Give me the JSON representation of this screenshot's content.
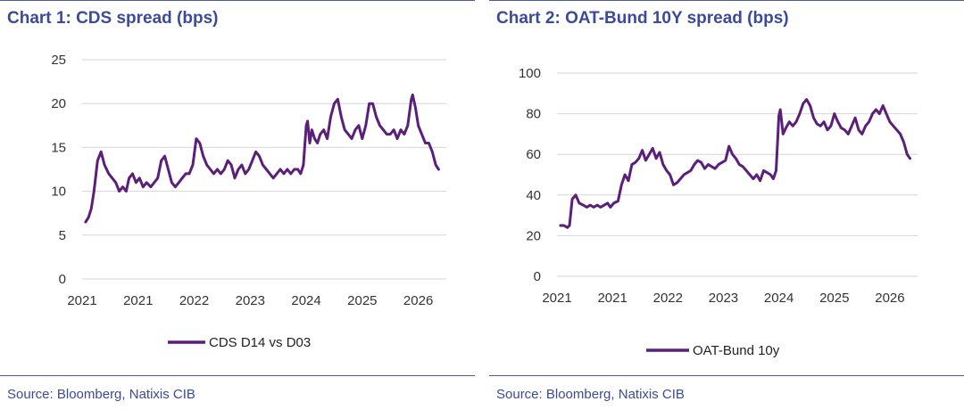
{
  "panels": [
    {
      "title": "Chart 1: CDS spread (bps)",
      "source": "Source: Bloomberg, Natixis CIB"
    },
    {
      "title": "Chart 2: OAT-Bund 10Y spread (bps)",
      "source": "Source: Bloomberg, Natixis CIB"
    }
  ],
  "chart_data": [
    {
      "type": "line",
      "title": "Chart 1: CDS spread (bps)",
      "xlabel": "",
      "ylabel": "",
      "ylim": [
        0,
        25
      ],
      "yticks": [
        0,
        5,
        10,
        15,
        20,
        25
      ],
      "xlim": [
        2021.0,
        2026.2
      ],
      "xtick_positions": [
        2021.0,
        2021.8,
        2022.6,
        2023.4,
        2024.2,
        2025.0,
        2025.8
      ],
      "xtick_labels": [
        "2021",
        "2021",
        "2022",
        "2023",
        "2024",
        "2025",
        "2026"
      ],
      "grid": "horizontal",
      "legend": "bottom",
      "color": "#5b1f7a",
      "series": [
        {
          "name": "CDS D14 vs D03",
          "x": [
            2021.05,
            2021.09,
            2021.13,
            2021.17,
            2021.22,
            2021.27,
            2021.32,
            2021.38,
            2021.43,
            2021.48,
            2021.53,
            2021.58,
            2021.63,
            2021.67,
            2021.72,
            2021.77,
            2021.82,
            2021.87,
            2021.92,
            2021.98,
            2022.03,
            2022.08,
            2022.13,
            2022.18,
            2022.23,
            2022.28,
            2022.33,
            2022.38,
            2022.43,
            2022.48,
            2022.53,
            2022.58,
            2022.63,
            2022.68,
            2022.73,
            2022.78,
            2022.83,
            2022.88,
            2022.93,
            2022.98,
            2023.03,
            2023.08,
            2023.13,
            2023.18,
            2023.23,
            2023.28,
            2023.33,
            2023.38,
            2023.43,
            2023.48,
            2023.53,
            2023.58,
            2023.63,
            2023.68,
            2023.73,
            2023.78,
            2023.83,
            2023.88,
            2023.93,
            2023.98,
            2024.03,
            2024.08,
            2024.12,
            2024.16,
            2024.2,
            2024.22,
            2024.25,
            2024.28,
            2024.32,
            2024.36,
            2024.4,
            2024.45,
            2024.5,
            2024.55,
            2024.6,
            2024.65,
            2024.7,
            2024.75,
            2024.8,
            2024.85,
            2024.9,
            2024.95,
            2025.0,
            2025.05,
            2025.1,
            2025.15,
            2025.2,
            2025.25,
            2025.3,
            2025.35,
            2025.4,
            2025.45,
            2025.5,
            2025.55,
            2025.6,
            2025.65,
            2025.7,
            2025.72,
            2025.76,
            2025.8,
            2025.85,
            2025.9,
            2025.95,
            2026.0,
            2026.05,
            2026.09
          ],
          "y": [
            6.5,
            7.0,
            8.0,
            10.0,
            13.5,
            14.5,
            13.0,
            12.0,
            11.5,
            11.0,
            10.0,
            10.5,
            10.0,
            11.5,
            12.0,
            11.0,
            11.5,
            10.5,
            11.0,
            10.5,
            11.0,
            11.5,
            13.5,
            14.0,
            12.5,
            11.0,
            10.5,
            11.0,
            11.5,
            12.0,
            12.0,
            13.0,
            16.0,
            15.5,
            14.0,
            13.0,
            12.5,
            12.0,
            12.5,
            12.0,
            12.5,
            13.5,
            13.0,
            11.5,
            12.5,
            13.0,
            12.0,
            12.5,
            13.5,
            14.5,
            14.0,
            13.0,
            12.5,
            12.0,
            11.5,
            12.0,
            12.5,
            12.0,
            12.5,
            12.0,
            12.5,
            12.5,
            12.0,
            13.0,
            17.5,
            18.0,
            15.5,
            17.0,
            16.0,
            15.5,
            16.5,
            17.0,
            16.0,
            18.5,
            20.0,
            20.5,
            18.5,
            17.0,
            16.5,
            16.0,
            17.0,
            17.5,
            16.0,
            17.5,
            20.0,
            20.0,
            18.5,
            17.5,
            17.0,
            16.5,
            16.5,
            17.0,
            16.0,
            17.0,
            16.5,
            17.5,
            20.5,
            21.0,
            19.5,
            17.5,
            16.5,
            15.5,
            15.5,
            14.5,
            13.0,
            12.5
          ]
        }
      ]
    },
    {
      "type": "line",
      "title": "Chart 2: OAT-Bund 10Y spread (bps)",
      "xlabel": "",
      "ylabel": "",
      "ylim": [
        0,
        100
      ],
      "yticks": [
        0,
        20,
        40,
        60,
        80,
        100
      ],
      "xlim": [
        2021.0,
        2026.2
      ],
      "xtick_positions": [
        2021.0,
        2021.8,
        2022.6,
        2023.4,
        2024.2,
        2025.0,
        2025.8
      ],
      "xtick_labels": [
        "2021",
        "2021",
        "2022",
        "2023",
        "2024",
        "2025",
        "2026"
      ],
      "grid": "horizontal",
      "legend": "bottom",
      "color": "#5b1f7a",
      "series": [
        {
          "name": "OAT-Bund 10y",
          "x": [
            2021.05,
            2021.1,
            2021.15,
            2021.18,
            2021.22,
            2021.27,
            2021.32,
            2021.38,
            2021.43,
            2021.48,
            2021.53,
            2021.58,
            2021.63,
            2021.68,
            2021.73,
            2021.77,
            2021.82,
            2021.88,
            2021.93,
            2021.98,
            2022.03,
            2022.08,
            2022.13,
            2022.18,
            2022.23,
            2022.28,
            2022.33,
            2022.38,
            2022.43,
            2022.48,
            2022.53,
            2022.58,
            2022.63,
            2022.68,
            2022.73,
            2022.78,
            2022.83,
            2022.88,
            2022.93,
            2022.98,
            2023.03,
            2023.08,
            2023.13,
            2023.18,
            2023.23,
            2023.28,
            2023.33,
            2023.38,
            2023.43,
            2023.48,
            2023.53,
            2023.58,
            2023.63,
            2023.68,
            2023.73,
            2023.78,
            2023.83,
            2023.88,
            2023.93,
            2023.98,
            2024.03,
            2024.08,
            2024.12,
            2024.16,
            2024.2,
            2024.22,
            2024.26,
            2024.3,
            2024.35,
            2024.4,
            2024.45,
            2024.5,
            2024.55,
            2024.6,
            2024.65,
            2024.7,
            2024.75,
            2024.8,
            2024.85,
            2024.9,
            2024.95,
            2025.0,
            2025.05,
            2025.1,
            2025.15,
            2025.2,
            2025.25,
            2025.3,
            2025.35,
            2025.4,
            2025.45,
            2025.5,
            2025.55,
            2025.6,
            2025.65,
            2025.7,
            2025.75,
            2025.8,
            2025.85,
            2025.9,
            2025.95,
            2026.0,
            2026.05,
            2026.09
          ],
          "y": [
            25,
            25,
            24,
            25,
            38,
            40,
            36,
            35,
            34,
            35,
            34,
            35,
            34,
            35,
            36,
            34,
            36,
            37,
            45,
            50,
            47,
            55,
            56,
            58,
            62,
            57,
            60,
            63,
            58,
            61,
            55,
            52,
            50,
            45,
            46,
            48,
            50,
            51,
            52,
            55,
            57,
            56,
            53,
            55,
            54,
            53,
            55,
            56,
            57,
            64,
            60,
            58,
            55,
            54,
            52,
            50,
            48,
            50,
            47,
            52,
            51,
            50,
            48,
            52,
            79,
            82,
            70,
            73,
            76,
            74,
            76,
            80,
            85,
            87,
            84,
            78,
            75,
            74,
            76,
            72,
            74,
            80,
            76,
            73,
            72,
            70,
            74,
            78,
            72,
            70,
            74,
            76,
            80,
            82,
            80,
            84,
            80,
            76,
            74,
            72,
            70,
            66,
            60,
            58
          ]
        }
      ]
    }
  ]
}
